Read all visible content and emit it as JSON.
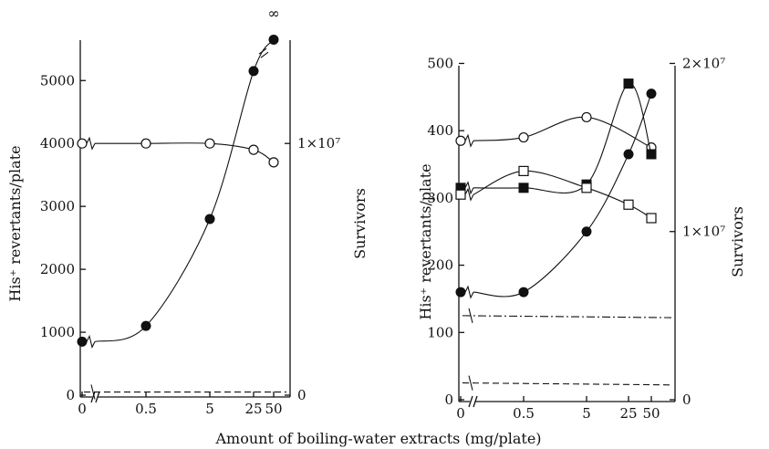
{
  "figure": {
    "xlabel": "Amount of boiling-water extracts (mg/plate)"
  },
  "chart_data": [
    {
      "type": "scatter",
      "panel": "left",
      "x_categories": [
        "0",
        "0.5",
        "5",
        "25",
        "50"
      ],
      "ylabel": "His⁺ revertants/plate",
      "y2label": "Survivors",
      "yticks": [
        "0",
        "1000",
        "2000",
        "3000",
        "4000",
        "5000"
      ],
      "y2ticks": [
        "0",
        "1×10⁷"
      ],
      "ylim": [
        0,
        5700
      ],
      "y2lim": [
        0,
        14250000
      ],
      "annotations": [
        "∞"
      ],
      "series": [
        {
          "axis": "left",
          "marker": "filled-circle",
          "points": [
            [
              0,
              850
            ],
            [
              0.5,
              1100
            ],
            [
              5,
              2800
            ],
            [
              25,
              5150
            ],
            [
              50,
              5650
            ]
          ]
        },
        {
          "axis": "right",
          "marker": "open-circle",
          "points": [
            [
              0,
              10000000
            ],
            [
              0.5,
              10000000
            ],
            [
              5,
              10000000
            ],
            [
              25,
              9750000
            ],
            [
              50,
              9250000
            ]
          ]
        },
        {
          "axis": "left",
          "marker": "dashed-line",
          "points": [
            [
              0,
              50
            ],
            [
              50,
              50
            ]
          ]
        }
      ]
    },
    {
      "type": "scatter",
      "panel": "right",
      "x_categories": [
        "0",
        "0.5",
        "5",
        "25",
        "50"
      ],
      "ylabel": "His⁺ revertants/plate",
      "y2label": "Survivors",
      "yticks": [
        "0",
        "100",
        "200",
        "300",
        "400",
        "500"
      ],
      "y2ticks": [
        "0",
        "1×10⁷",
        "2×10⁷"
      ],
      "ylim": [
        0,
        540
      ],
      "y2lim": [
        0,
        21600000
      ],
      "series": [
        {
          "axis": "left",
          "marker": "filled-circle",
          "points": [
            [
              0,
              160
            ],
            [
              0.5,
              160
            ],
            [
              5,
              250
            ],
            [
              25,
              365
            ],
            [
              50,
              455
            ]
          ]
        },
        {
          "axis": "right",
          "marker": "open-circle",
          "points": [
            [
              0,
              15400000
            ],
            [
              0.5,
              15600000
            ],
            [
              5,
              16800000
            ],
            [
              50,
              15000000
            ]
          ]
        },
        {
          "axis": "left",
          "marker": "filled-square",
          "points": [
            [
              0,
              315
            ],
            [
              0.5,
              315
            ],
            [
              5,
              320
            ],
            [
              25,
              470
            ],
            [
              50,
              365
            ]
          ]
        },
        {
          "axis": "left",
          "marker": "open-square",
          "points": [
            [
              0,
              305
            ],
            [
              0.5,
              340
            ],
            [
              5,
              315
            ],
            [
              25,
              290
            ],
            [
              50,
              270
            ]
          ]
        },
        {
          "axis": "left",
          "marker": "dash-dot-line",
          "points": [
            [
              0,
              125
            ],
            [
              50,
              122
            ]
          ]
        },
        {
          "axis": "left",
          "marker": "dashed-line",
          "points": [
            [
              0,
              25
            ],
            [
              50,
              22
            ]
          ]
        }
      ]
    }
  ]
}
